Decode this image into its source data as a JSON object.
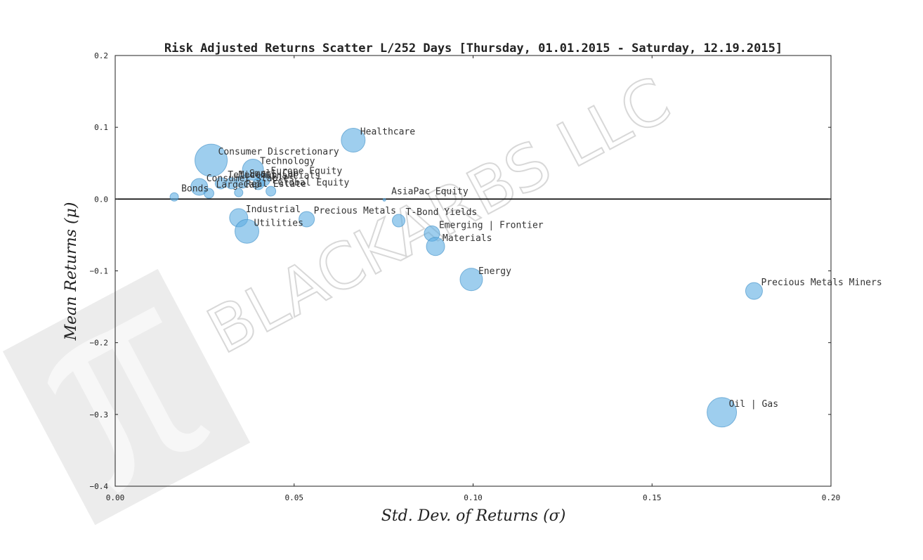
{
  "watermark": {
    "text": "BLACKARBS LLC",
    "logo_icon": "pi-logo-icon",
    "color": "#e6e6e6"
  },
  "chart_data": {
    "type": "scatter",
    "title": "Risk Adjusted Returns Scatter L/252 Days [Thursday, 01.01.2015 - Saturday, 12.19.2015]",
    "xlabel": "Std.  Dev.  of  Returns     (σ)",
    "ylabel": "Mean  Returns     (μ)",
    "xlim": [
      0.0,
      0.2
    ],
    "ylim": [
      -0.4,
      0.2
    ],
    "xticks": [
      0.0,
      0.05,
      0.1,
      0.15,
      0.2
    ],
    "xtick_labels": [
      "0.00",
      "0.05",
      "0.10",
      "0.15",
      "0.20"
    ],
    "yticks": [
      -0.4,
      -0.3,
      -0.2,
      -0.1,
      0.0,
      0.1,
      0.2
    ],
    "ytick_labels": [
      "−0.4",
      "−0.3",
      "−0.2",
      "−0.1",
      "0.0",
      "0.1",
      "0.2"
    ],
    "zero_line": 0.0,
    "marker_color": "#5dade2",
    "points": [
      {
        "label": "Healthcare",
        "x": 0.0665,
        "y": 0.082,
        "size": 17
      },
      {
        "label": "Consumer Discretionary",
        "x": 0.0268,
        "y": 0.054,
        "size": 23
      },
      {
        "label": "Technology",
        "x": 0.0385,
        "y": 0.041,
        "size": 15
      },
      {
        "label": "Europe Equity",
        "x": 0.0415,
        "y": 0.027,
        "size": 9
      },
      {
        "label": "Small Cap",
        "x": 0.0355,
        "y": 0.024,
        "size": 9
      },
      {
        "label": "Financials",
        "x": 0.04,
        "y": 0.021,
        "size": 8
      },
      {
        "label": "Telecom",
        "x": 0.0295,
        "y": 0.022,
        "size": 8
      },
      {
        "label": "Mid Cap",
        "x": 0.0325,
        "y": 0.022,
        "size": 8
      },
      {
        "label": "Consumer Staples",
        "x": 0.0235,
        "y": 0.017,
        "size": 12
      },
      {
        "label": "Global Equity",
        "x": 0.0435,
        "y": 0.011,
        "size": 7
      },
      {
        "label": "Real Estate",
        "x": 0.0345,
        "y": 0.009,
        "size": 6
      },
      {
        "label": "LargeCap",
        "x": 0.0262,
        "y": 0.008,
        "size": 7
      },
      {
        "label": "Bonds",
        "x": 0.0165,
        "y": 0.003,
        "size": 6
      },
      {
        "label": "AsiaPac Equity",
        "x": 0.0752,
        "y": -0.001,
        "size": 2
      },
      {
        "label": "Industrial",
        "x": 0.0345,
        "y": -0.026,
        "size": 13
      },
      {
        "label": "Utilities",
        "x": 0.0368,
        "y": -0.045,
        "size": 17
      },
      {
        "label": "Precious Metals",
        "x": 0.0535,
        "y": -0.028,
        "size": 11
      },
      {
        "label": "T-Bond Yields",
        "x": 0.0792,
        "y": -0.03,
        "size": 9
      },
      {
        "label": "Emerging | Frontier",
        "x": 0.0885,
        "y": -0.048,
        "size": 11
      },
      {
        "label": "Materials",
        "x": 0.0895,
        "y": -0.066,
        "size": 13
      },
      {
        "label": "Energy",
        "x": 0.0995,
        "y": -0.112,
        "size": 16
      },
      {
        "label": "Precious Metals Miners",
        "x": 0.1785,
        "y": -0.128,
        "size": 12
      },
      {
        "label": "Oil | Gas",
        "x": 0.1695,
        "y": -0.297,
        "size": 21
      }
    ]
  }
}
